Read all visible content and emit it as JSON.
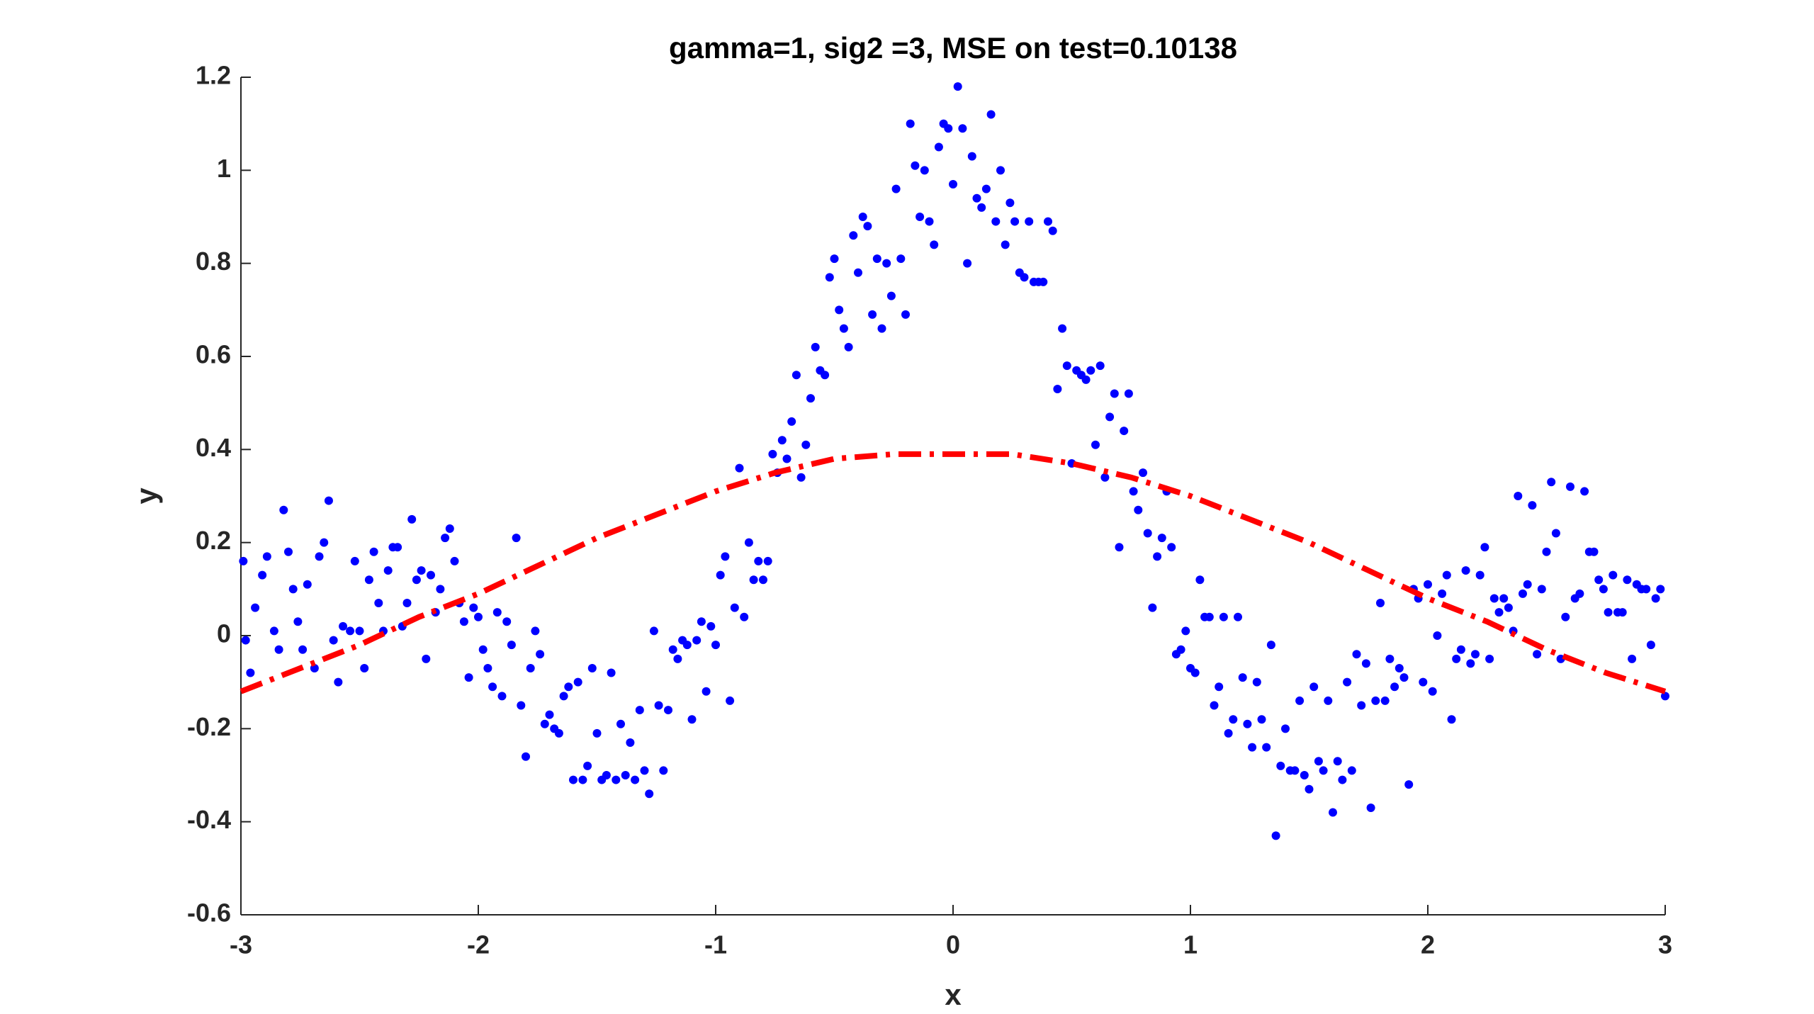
{
  "chart_data": {
    "type": "scatter",
    "title": "gamma=1,  sig2 =3,  MSE on test=0.10138",
    "xlabel": "x",
    "ylabel": "y",
    "xlim": [
      -3,
      3
    ],
    "ylim": [
      -0.6,
      1.2
    ],
    "xticks": [
      -3,
      -2,
      -1,
      0,
      1,
      2,
      3
    ],
    "yticks": [
      -0.6,
      -0.4,
      -0.2,
      0,
      0.2,
      0.4,
      0.6,
      0.8,
      1,
      1.2
    ],
    "grid": false,
    "series": [
      {
        "type": "scatter",
        "color": "#0000ff",
        "x": [
          -2.99,
          -2.98,
          -2.96,
          -2.94,
          -2.91,
          -2.89,
          -2.86,
          -2.84,
          -2.82,
          -2.8,
          -2.78,
          -2.76,
          -2.74,
          -2.72,
          -2.69,
          -2.67,
          -2.65,
          -2.63,
          -2.61,
          -2.59,
          -2.57,
          -2.54,
          -2.52,
          -2.5,
          -2.48,
          -2.46,
          -2.44,
          -2.42,
          -2.4,
          -2.38,
          -2.36,
          -2.34,
          -2.32,
          -2.3,
          -2.28,
          -2.26,
          -2.24,
          -2.22,
          -2.2,
          -2.18,
          -2.16,
          -2.14,
          -2.12,
          -2.1,
          -2.08,
          -2.06,
          -2.04,
          -2.02,
          -2,
          -1.98,
          -1.96,
          -1.94,
          -1.92,
          -1.9,
          -1.88,
          -1.86,
          -1.84,
          -1.82,
          -1.8,
          -1.78,
          -1.76,
          -1.74,
          -1.72,
          -1.7,
          -1.68,
          -1.66,
          -1.64,
          -1.62,
          -1.6,
          -1.58,
          -1.56,
          -1.54,
          -1.52,
          -1.5,
          -1.48,
          -1.46,
          -1.44,
          -1.42,
          -1.4,
          -1.38,
          -1.36,
          -1.34,
          -1.32,
          -1.3,
          -1.28,
          -1.26,
          -1.24,
          -1.22,
          -1.2,
          -1.18,
          -1.16,
          -1.14,
          -1.12,
          -1.1,
          -1.08,
          -1.06,
          -1.04,
          -1.02,
          -1,
          -0.98,
          -0.96,
          -0.94,
          -0.92,
          -0.9,
          -0.88,
          -0.86,
          -0.84,
          -0.82,
          -0.8,
          -0.78,
          -0.76,
          -0.74,
          -0.72,
          -0.7,
          -0.68,
          -0.66,
          -0.64,
          -0.62,
          -0.6,
          -0.58,
          -0.56,
          -0.54,
          -0.52,
          -0.5,
          -0.48,
          -0.46,
          -0.44,
          -0.42,
          -0.4,
          -0.38,
          -0.36,
          -0.34,
          -0.32,
          -0.3,
          -0.28,
          -0.26,
          -0.24,
          -0.22,
          -0.2,
          -0.18,
          -0.16,
          -0.14,
          -0.12,
          -0.1,
          -0.08,
          -0.06,
          -0.04,
          -0.02,
          0,
          0.02,
          0.04,
          0.06,
          0.08,
          0.1,
          0.12,
          0.14,
          0.16,
          0.18,
          0.2,
          0.22,
          0.24,
          0.26,
          0.28,
          0.3,
          0.32,
          0.34,
          0.36,
          0.38,
          0.4,
          0.42,
          0.44,
          0.46,
          0.48,
          0.5,
          0.52,
          0.54,
          0.56,
          0.58,
          0.6,
          0.62,
          0.64,
          0.66,
          0.68,
          0.7,
          0.72,
          0.74,
          0.76,
          0.78,
          0.8,
          0.82,
          0.84,
          0.86,
          0.88,
          0.9,
          0.92,
          0.94,
          0.96,
          0.98,
          1,
          1.02,
          1.04,
          1.06,
          1.08,
          1.1,
          1.12,
          1.14,
          1.16,
          1.18,
          1.2,
          1.22,
          1.24,
          1.26,
          1.28,
          1.3,
          1.32,
          1.34,
          1.36,
          1.38,
          1.4,
          1.42,
          1.44,
          1.46,
          1.48,
          1.5,
          1.52,
          1.54,
          1.56,
          1.58,
          1.6,
          1.62,
          1.64,
          1.66,
          1.68,
          1.7,
          1.72,
          1.74,
          1.76,
          1.78,
          1.8,
          1.82,
          1.84,
          1.86,
          1.88,
          1.9,
          1.92,
          1.94,
          1.96,
          1.98,
          2,
          2.02,
          2.04,
          2.06,
          2.08,
          2.1,
          2.12,
          2.14,
          2.16,
          2.18,
          2.2,
          2.22,
          2.24,
          2.26,
          2.28,
          2.3,
          2.32,
          2.34,
          2.36,
          2.38,
          2.4,
          2.42,
          2.44,
          2.46,
          2.48,
          2.5,
          2.52,
          2.54,
          2.56,
          2.58,
          2.6,
          2.62,
          2.64,
          2.66,
          2.68,
          2.7,
          2.72,
          2.74,
          2.76,
          2.78,
          2.8,
          2.82,
          2.84,
          2.86,
          2.88,
          2.9,
          2.92,
          2.94,
          2.96,
          2.98,
          3
        ],
        "values": [
          0.16,
          -0.01,
          -0.08,
          0.06,
          0.13,
          0.17,
          0.01,
          -0.03,
          0.27,
          0.18,
          0.1,
          0.03,
          -0.03,
          0.11,
          -0.07,
          0.17,
          0.2,
          0.29,
          -0.01,
          -0.1,
          0.02,
          0.01,
          0.16,
          0.01,
          -0.07,
          0.12,
          0.18,
          0.07,
          0.01,
          0.14,
          0.19,
          0.19,
          0.02,
          0.07,
          0.25,
          0.12,
          0.14,
          -0.05,
          0.13,
          0.05,
          0.1,
          0.21,
          0.23,
          0.16,
          0.07,
          0.03,
          -0.09,
          0.06,
          0.04,
          -0.03,
          -0.07,
          -0.11,
          0.05,
          -0.13,
          0.03,
          -0.02,
          0.21,
          -0.15,
          -0.26,
          -0.07,
          0.01,
          -0.04,
          -0.19,
          -0.17,
          -0.2,
          -0.21,
          -0.13,
          -0.11,
          -0.31,
          -0.1,
          -0.31,
          -0.28,
          -0.07,
          -0.21,
          -0.31,
          -0.3,
          -0.08,
          -0.31,
          -0.19,
          -0.3,
          -0.23,
          -0.31,
          -0.16,
          -0.29,
          -0.34,
          0.01,
          -0.15,
          -0.29,
          -0.16,
          -0.03,
          -0.05,
          -0.01,
          -0.02,
          -0.18,
          -0.01,
          0.03,
          -0.12,
          0.02,
          -0.02,
          0.13,
          0.17,
          -0.14,
          0.06,
          0.36,
          0.04,
          0.2,
          0.12,
          0.16,
          0.12,
          0.16,
          0.39,
          0.35,
          0.42,
          0.38,
          0.46,
          0.56,
          0.34,
          0.41,
          0.51,
          0.62,
          0.57,
          0.56,
          0.77,
          0.81,
          0.7,
          0.66,
          0.62,
          0.86,
          0.78,
          0.9,
          0.88,
          0.69,
          0.81,
          0.66,
          0.8,
          0.73,
          0.96,
          0.81,
          0.69,
          1.1,
          1.01,
          0.9,
          1,
          0.89,
          0.84,
          1.05,
          1.1,
          1.09,
          0.97,
          1.18,
          1.09,
          0.8,
          1.03,
          0.94,
          0.92,
          0.96,
          1.12,
          0.89,
          1,
          0.84,
          0.93,
          0.89,
          0.78,
          0.77,
          0.89,
          0.76,
          0.76,
          0.76,
          0.89,
          0.87,
          0.53,
          0.66,
          0.58,
          0.37,
          0.57,
          0.56,
          0.55,
          0.57,
          0.41,
          0.58,
          0.34,
          0.47,
          0.52,
          0.19,
          0.44,
          0.52,
          0.31,
          0.27,
          0.35,
          0.22,
          0.06,
          0.17,
          0.21,
          0.31,
          0.19,
          -0.04,
          -0.03,
          0.01,
          -0.07,
          -0.08,
          0.12,
          0.04,
          0.04,
          -0.15,
          -0.11,
          0.04,
          -0.21,
          -0.18,
          0.04,
          -0.09,
          -0.19,
          -0.24,
          -0.1,
          -0.18,
          -0.24,
          -0.02,
          -0.43,
          -0.28,
          -0.2,
          -0.29,
          -0.29,
          -0.14,
          -0.3,
          -0.33,
          -0.11,
          -0.27,
          -0.29,
          -0.14,
          -0.38,
          -0.27,
          -0.31,
          -0.1,
          -0.29,
          -0.04,
          -0.15,
          -0.06,
          -0.37,
          -0.14,
          0.07,
          -0.14,
          -0.05,
          -0.11,
          -0.07,
          -0.09,
          -0.32,
          0.1,
          0.08,
          -0.1,
          0.11,
          -0.12,
          0,
          0.09,
          0.13,
          -0.18,
          -0.05,
          -0.03,
          0.14,
          -0.06,
          -0.04,
          0.13,
          0.19,
          -0.05,
          0.08,
          0.05,
          0.08,
          0.06,
          0.01,
          0.3,
          0.09,
          0.11,
          0.28,
          -0.04,
          0.1,
          0.18,
          0.33,
          0.22,
          -0.05,
          0.04,
          0.32,
          0.08,
          0.09,
          0.31,
          0.18,
          0.18,
          0.12,
          0.1,
          0.05,
          0.13,
          0.05,
          0.05,
          0.12,
          -0.05,
          0.11,
          0.1,
          0.1,
          -0.02,
          0.08,
          0.1,
          -0.13
        ]
      },
      {
        "type": "line",
        "color": "#ff0000",
        "x": [
          -3,
          -2.75,
          -2.5,
          -2.25,
          -2,
          -1.75,
          -1.5,
          -1.25,
          -1,
          -0.75,
          -0.5,
          -0.25,
          0,
          0.25,
          0.5,
          0.75,
          1,
          1.25,
          1.5,
          1.75,
          2,
          2.25,
          2.5,
          2.75,
          3
        ],
        "values": [
          -0.12,
          -0.07,
          -0.02,
          0.04,
          0.09,
          0.15,
          0.21,
          0.26,
          0.31,
          0.35,
          0.38,
          0.39,
          0.39,
          0.39,
          0.37,
          0.34,
          0.3,
          0.25,
          0.2,
          0.14,
          0.08,
          0.03,
          -0.03,
          -0.08,
          -0.12
        ]
      }
    ]
  }
}
